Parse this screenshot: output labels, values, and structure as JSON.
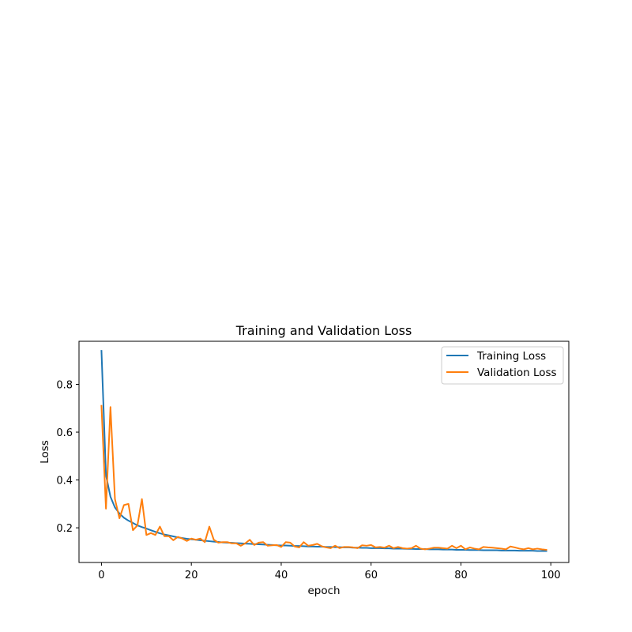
{
  "chart_data": {
    "type": "line",
    "title": "Training and Validation Loss",
    "xlabel": "epoch",
    "ylabel": "Loss",
    "xlim": [
      -5,
      104
    ],
    "ylim": [
      0.055,
      0.98
    ],
    "xticks": [
      0,
      20,
      40,
      60,
      80,
      100
    ],
    "yticks": [
      0.2,
      0.4,
      0.6,
      0.8
    ],
    "xtick_labels": [
      "0",
      "20",
      "40",
      "60",
      "80",
      "100"
    ],
    "ytick_labels": [
      "0.2",
      "0.4",
      "0.6",
      "0.8"
    ],
    "grid": false,
    "legend": "top-right",
    "x": [
      0,
      1,
      2,
      3,
      4,
      5,
      6,
      7,
      8,
      9,
      10,
      11,
      12,
      13,
      14,
      15,
      16,
      17,
      18,
      19,
      20,
      21,
      22,
      23,
      24,
      25,
      26,
      27,
      28,
      29,
      30,
      31,
      32,
      33,
      34,
      35,
      36,
      37,
      38,
      39,
      40,
      41,
      42,
      43,
      44,
      45,
      46,
      47,
      48,
      49,
      50,
      51,
      52,
      53,
      54,
      55,
      56,
      57,
      58,
      59,
      60,
      61,
      62,
      63,
      64,
      65,
      66,
      67,
      68,
      69,
      70,
      71,
      72,
      73,
      74,
      75,
      76,
      77,
      78,
      79,
      80,
      81,
      82,
      83,
      84,
      85,
      86,
      87,
      88,
      89,
      90,
      91,
      92,
      93,
      94,
      95,
      96,
      97,
      98,
      99
    ],
    "series": [
      {
        "name": "Training Loss",
        "color": "#1f77b4",
        "values": [
          0.94,
          0.42,
          0.33,
          0.285,
          0.26,
          0.242,
          0.23,
          0.22,
          0.21,
          0.203,
          0.197,
          0.19,
          0.183,
          0.177,
          0.172,
          0.168,
          0.164,
          0.16,
          0.157,
          0.154,
          0.152,
          0.15,
          0.148,
          0.146,
          0.144,
          0.142,
          0.141,
          0.139,
          0.138,
          0.137,
          0.136,
          0.135,
          0.134,
          0.133,
          0.132,
          0.131,
          0.13,
          0.129,
          0.128,
          0.127,
          0.126,
          0.126,
          0.125,
          0.124,
          0.124,
          0.123,
          0.122,
          0.122,
          0.121,
          0.121,
          0.12,
          0.12,
          0.119,
          0.119,
          0.118,
          0.118,
          0.117,
          0.117,
          0.116,
          0.116,
          0.115,
          0.115,
          0.115,
          0.114,
          0.114,
          0.113,
          0.113,
          0.113,
          0.112,
          0.112,
          0.111,
          0.111,
          0.111,
          0.11,
          0.11,
          0.11,
          0.109,
          0.109,
          0.109,
          0.108,
          0.108,
          0.108,
          0.107,
          0.107,
          0.107,
          0.106,
          0.106,
          0.106,
          0.106,
          0.105,
          0.105,
          0.105,
          0.105,
          0.104,
          0.104,
          0.104,
          0.104,
          0.103,
          0.103,
          0.103
        ]
      },
      {
        "name": "Validation Loss",
        "color": "#ff7f0e",
        "values": [
          0.71,
          0.28,
          0.705,
          0.32,
          0.24,
          0.295,
          0.3,
          0.19,
          0.21,
          0.32,
          0.17,
          0.178,
          0.17,
          0.205,
          0.165,
          0.165,
          0.148,
          0.162,
          0.155,
          0.145,
          0.155,
          0.15,
          0.155,
          0.14,
          0.205,
          0.15,
          0.138,
          0.14,
          0.14,
          0.135,
          0.135,
          0.125,
          0.135,
          0.15,
          0.128,
          0.138,
          0.14,
          0.125,
          0.127,
          0.128,
          0.12,
          0.14,
          0.138,
          0.122,
          0.118,
          0.14,
          0.125,
          0.128,
          0.133,
          0.123,
          0.118,
          0.115,
          0.125,
          0.115,
          0.12,
          0.12,
          0.118,
          0.115,
          0.127,
          0.125,
          0.128,
          0.118,
          0.12,
          0.117,
          0.125,
          0.115,
          0.12,
          0.115,
          0.113,
          0.115,
          0.125,
          0.113,
          0.11,
          0.113,
          0.117,
          0.117,
          0.115,
          0.113,
          0.125,
          0.115,
          0.125,
          0.11,
          0.118,
          0.113,
          0.11,
          0.12,
          0.118,
          0.117,
          0.115,
          0.113,
          0.11,
          0.122,
          0.118,
          0.113,
          0.11,
          0.115,
          0.11,
          0.113,
          0.11,
          0.108
        ]
      }
    ]
  }
}
